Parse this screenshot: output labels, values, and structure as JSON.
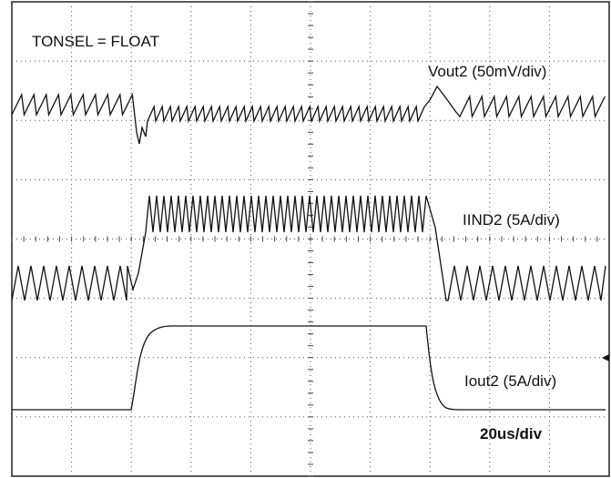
{
  "title": "TONSEL = FLOAT",
  "traces": [
    {
      "label": "Vout2 (50mV/div)"
    },
    {
      "label": "IIND2 (5A/div)"
    },
    {
      "label": "Iout2 (5A/div)"
    }
  ],
  "timebase": "20us/div"
}
